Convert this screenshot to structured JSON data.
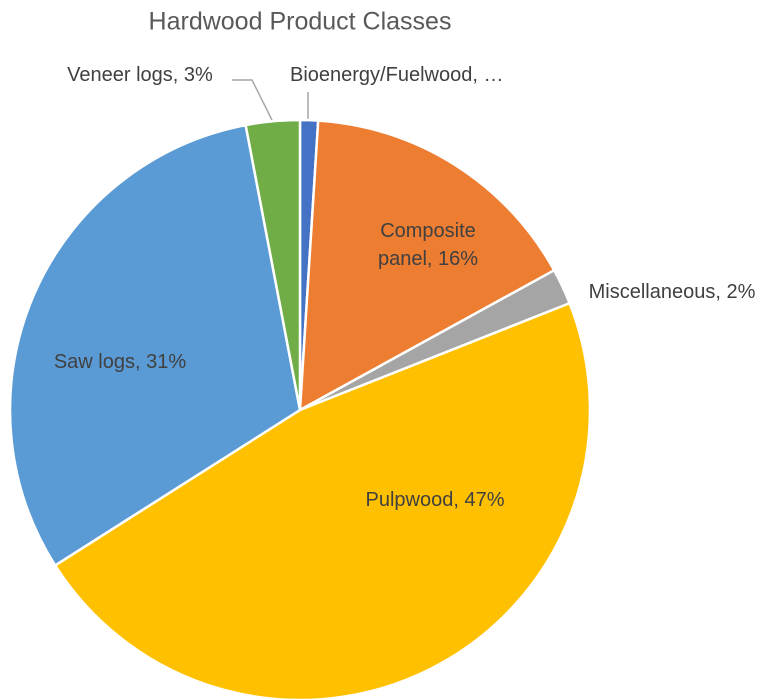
{
  "chart_data": {
    "type": "pie",
    "title": "Hardwood Product Classes",
    "categories": [
      "Bioenergy/Fuelwood",
      "Composite panel",
      "Miscellaneous",
      "Pulpwood",
      "Saw logs",
      "Veneer logs"
    ],
    "values": [
      1,
      16,
      2,
      47,
      31,
      3
    ],
    "value_labels": [
      "Bioenergy/Fuelwood, …",
      "Composite panel, 16%",
      "Miscellaneous, 2%",
      "Pulpwood, 47%",
      "Saw logs, 31%",
      "Veneer logs, 3%"
    ],
    "colors": [
      "#4472c4",
      "#ed7d31",
      "#a5a5a5",
      "#ffc000",
      "#5b9bd5",
      "#70ad47"
    ]
  }
}
